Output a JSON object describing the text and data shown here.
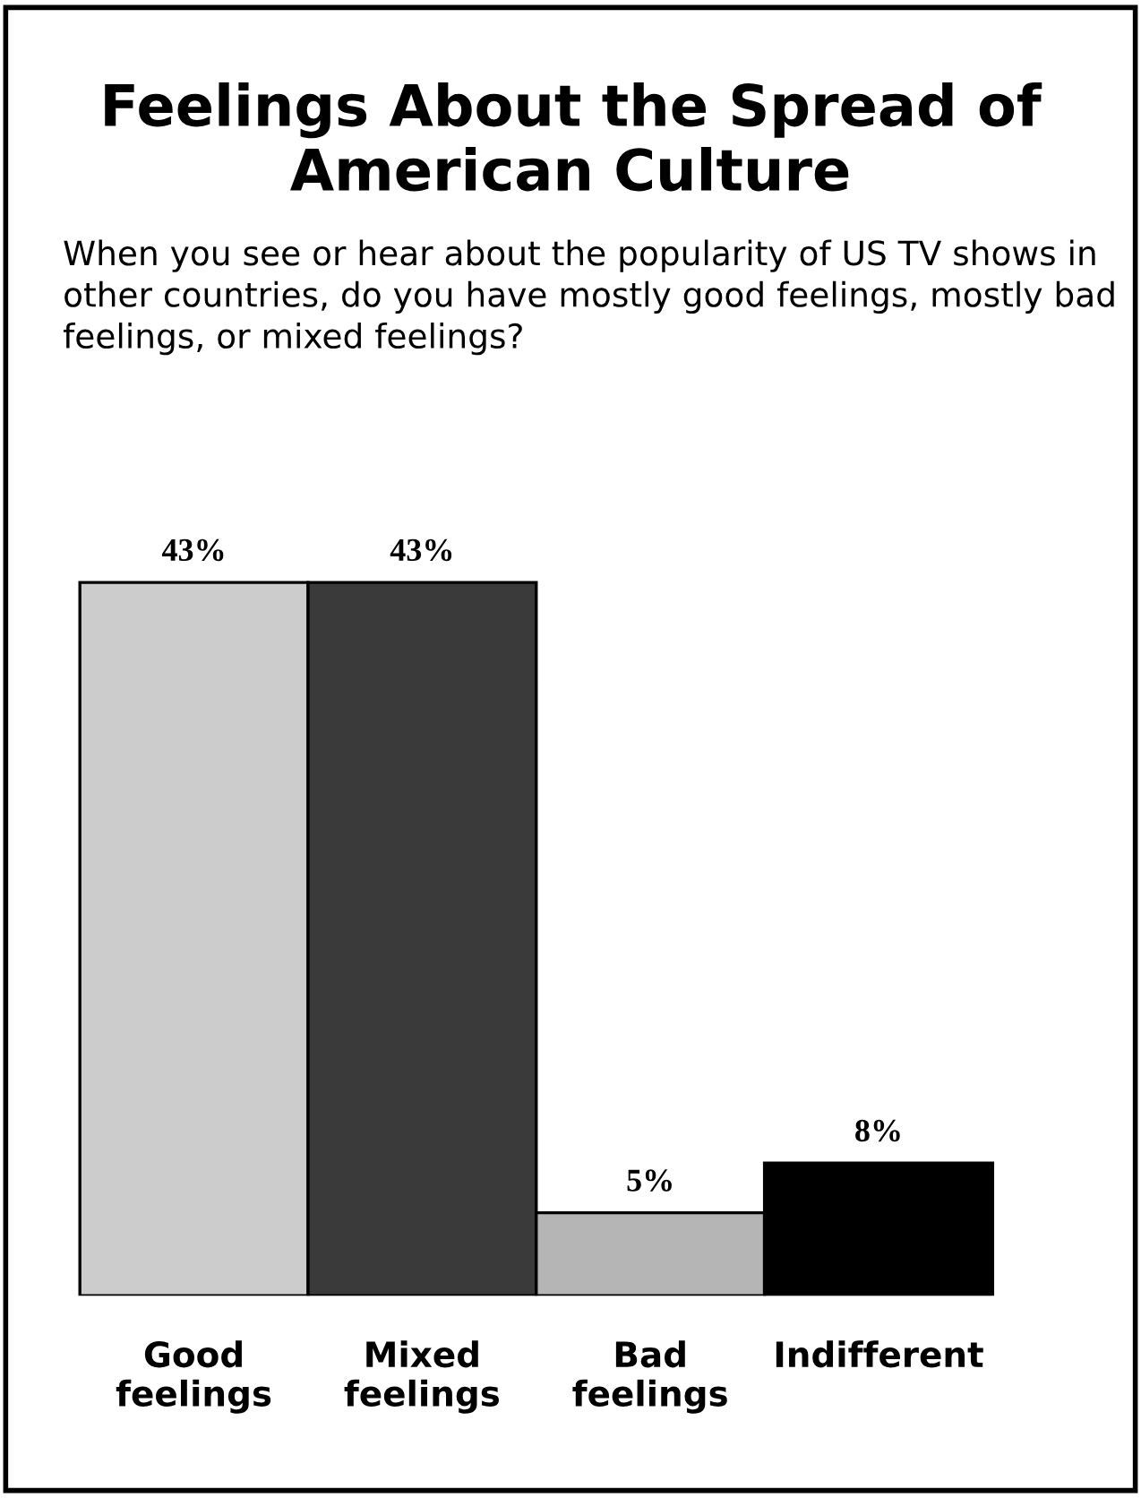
{
  "chart_data": {
    "type": "bar",
    "title": "Feelings About the Spread of American Culture",
    "subtitle": "When you see or hear about the popularity of US TV shows in other countries, do you have mostly good feelings, mostly bad feelings, or mixed feelings?",
    "categories": [
      "Good\nfeelings",
      "Mixed\nfeelings",
      "Bad\nfeelings",
      "Indifferent"
    ],
    "values": [
      43,
      43,
      5,
      8
    ],
    "value_labels": [
      "43%",
      "43%",
      "5%",
      "8%"
    ],
    "colors": [
      "#cccccc",
      "#3a3a3a",
      "#b5b5b5",
      "#000000"
    ],
    "grid": false,
    "legend": false
  }
}
